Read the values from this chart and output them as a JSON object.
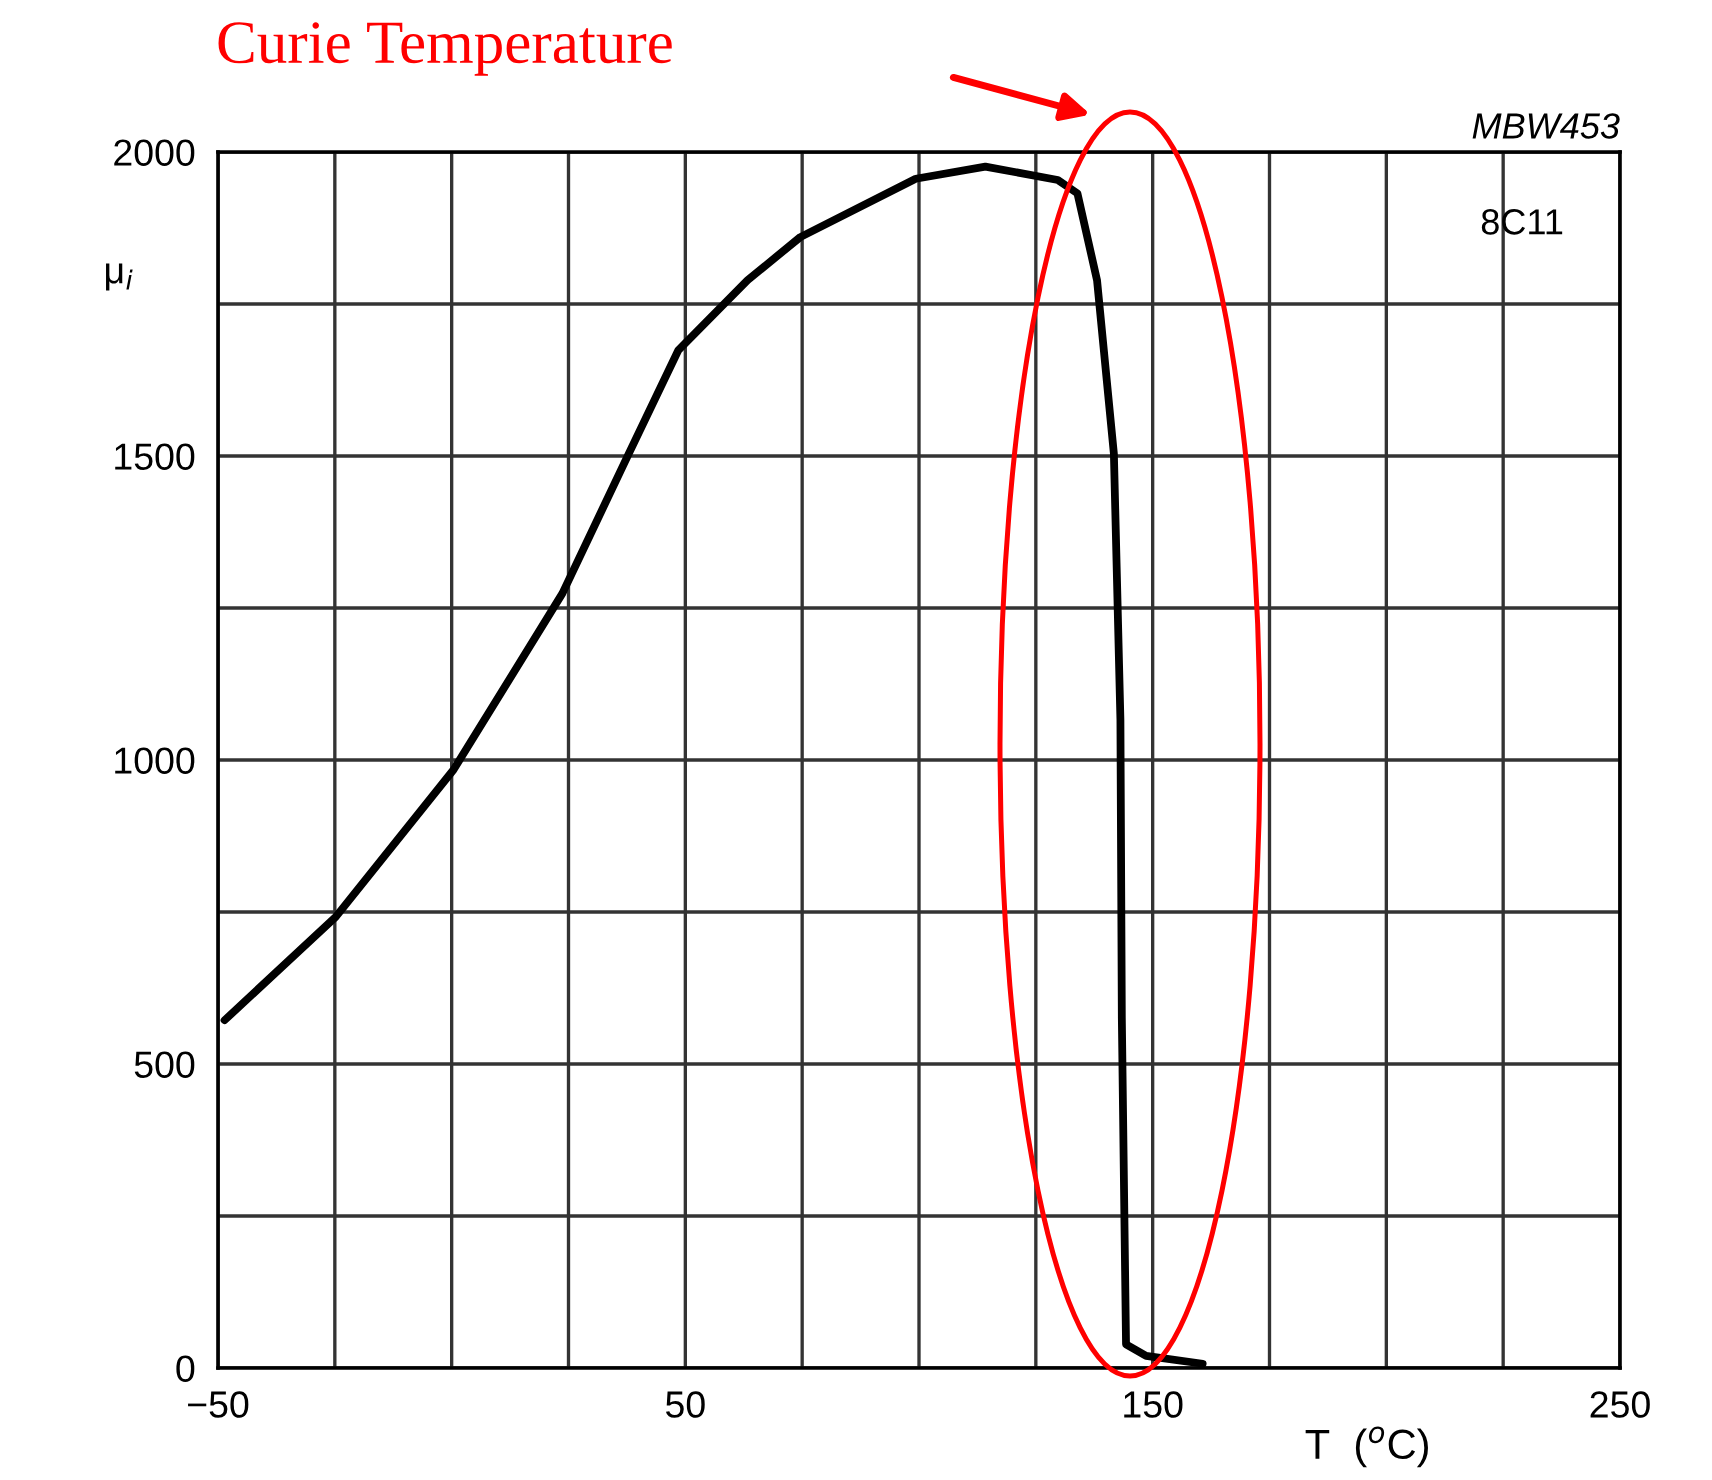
{
  "chart_data": {
    "type": "line",
    "title": "Curie Temperature",
    "xlabel": "T  ($^{o}$C)",
    "ylabel": "μ$_{i}$",
    "annotations": [
      "MBW453",
      "8C11"
    ],
    "x": [
      -48.6,
      -24.8,
      0.4,
      23.7,
      37.9,
      48.5,
      63.3,
      74.6,
      99.3,
      114.2,
      129.7,
      133.9,
      138.1,
      141.7,
      143.1,
      143.4,
      144.3,
      148.6,
      160.7
    ],
    "series": [
      {
        "color": "#000000",
        "values": [
          572,
          742,
          984,
          1274,
          1504,
          1674,
          1789,
          1860,
          1956,
          1976,
          1954,
          1932,
          1789,
          1504,
          1066,
          576,
          39,
          20,
          7
        ]
      }
    ],
    "xlim": [
      -50,
      250
    ],
    "ylim": [
      0,
      2000
    ],
    "xticks": [
      {
        "value": -50,
        "label": "−50"
      },
      {
        "value": -25,
        "label": null
      },
      {
        "value": 0,
        "label": null
      },
      {
        "value": 25,
        "label": null
      },
      50,
      {
        "value": 75,
        "label": null
      },
      {
        "value": 100,
        "label": null
      },
      {
        "value": 125,
        "label": null
      },
      150,
      {
        "value": 175,
        "label": null
      },
      {
        "value": 200,
        "label": null
      },
      {
        "value": 225,
        "label": null
      },
      250
    ],
    "yticks": [
      0,
      {
        "value": 250,
        "label": null
      },
      500,
      {
        "value": 750,
        "label": null
      },
      1000,
      {
        "value": 1250,
        "label": null
      },
      1500,
      {
        "value": 1750,
        "label": null
      },
      2000
    ],
    "grid": true,
    "legend": false,
    "marker": "none",
    "line_style": "solid"
  }
}
